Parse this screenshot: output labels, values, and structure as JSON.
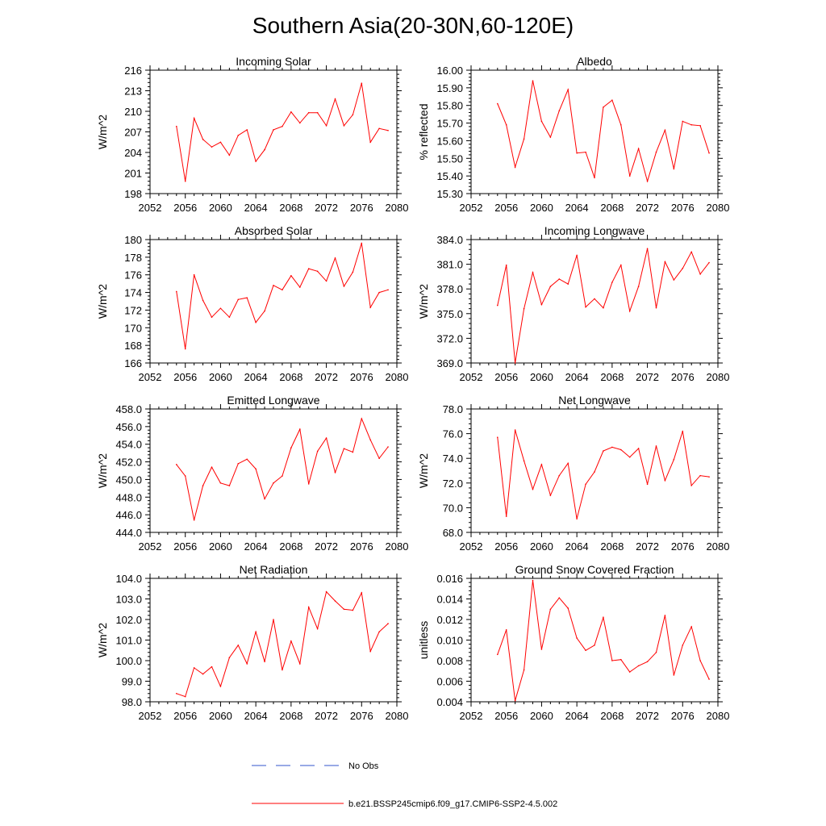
{
  "title": "Southern Asia(20-30N,60-120E)",
  "x_ticks": [
    "2052",
    "2056",
    "2060",
    "2064",
    "2068",
    "2072",
    "2076",
    "2080"
  ],
  "legend": {
    "obs_label": "No Obs",
    "obs_color": "#3355cc",
    "model_label": "b.e21.BSSP245cmip6.f09_g17.CMIP6-SSP2-4.5.002",
    "model_color": "#ff0000"
  },
  "chart_data": [
    {
      "type": "line",
      "title": "Incoming Solar",
      "ylabel": "W/m^2",
      "xlim": [
        2052,
        2080
      ],
      "ylim": [
        198,
        216
      ],
      "yticks": [
        "198",
        "201",
        "204",
        "207",
        "210",
        "213",
        "216"
      ],
      "x": [
        2055,
        2056,
        2057,
        2058,
        2059,
        2060,
        2061,
        2062,
        2063,
        2064,
        2065,
        2066,
        2067,
        2068,
        2069,
        2070,
        2071,
        2072,
        2073,
        2074,
        2075,
        2076,
        2077,
        2078,
        2079
      ],
      "values": [
        207.8,
        199.8,
        209.0,
        205.9,
        204.8,
        205.5,
        203.6,
        206.5,
        207.3,
        202.7,
        204.4,
        207.3,
        207.8,
        209.9,
        208.3,
        209.8,
        209.8,
        207.9,
        211.8,
        207.9,
        209.5,
        214.1,
        205.5,
        207.5,
        207.2
      ]
    },
    {
      "type": "line",
      "title": "Albedo",
      "ylabel": "% reflected",
      "xlim": [
        2052,
        2080
      ],
      "ylim": [
        15.3,
        16.0
      ],
      "yticks": [
        "15.30",
        "15.40",
        "15.50",
        "15.60",
        "15.70",
        "15.80",
        "15.90",
        "16.00"
      ],
      "x": [
        2055,
        2056,
        2057,
        2058,
        2059,
        2060,
        2061,
        2062,
        2063,
        2064,
        2065,
        2066,
        2067,
        2068,
        2069,
        2070,
        2071,
        2072,
        2073,
        2074,
        2075,
        2076,
        2077,
        2078,
        2079
      ],
      "values": [
        15.81,
        15.69,
        15.45,
        15.61,
        15.94,
        15.71,
        15.62,
        15.77,
        15.89,
        15.53,
        15.535,
        15.39,
        15.79,
        15.83,
        15.69,
        15.4,
        15.555,
        15.37,
        15.535,
        15.66,
        15.44,
        15.71,
        15.69,
        15.685,
        15.53
      ]
    },
    {
      "type": "line",
      "title": "Absorbed Solar",
      "ylabel": "W/m^2",
      "xlim": [
        2052,
        2080
      ],
      "ylim": [
        166,
        180
      ],
      "yticks": [
        "166",
        "168",
        "170",
        "172",
        "174",
        "176",
        "178",
        "180"
      ],
      "x": [
        2055,
        2056,
        2057,
        2058,
        2059,
        2060,
        2061,
        2062,
        2063,
        2064,
        2065,
        2066,
        2067,
        2068,
        2069,
        2070,
        2071,
        2072,
        2073,
        2074,
        2075,
        2076,
        2077,
        2078,
        2079
      ],
      "values": [
        174.1,
        167.6,
        176.0,
        173.1,
        171.2,
        172.2,
        171.2,
        173.2,
        173.4,
        170.6,
        171.9,
        174.8,
        174.3,
        175.9,
        174.6,
        176.7,
        176.4,
        175.3,
        177.9,
        174.7,
        176.3,
        179.6,
        172.3,
        174.0,
        174.3
      ]
    },
    {
      "type": "line",
      "title": "Incoming Longwave",
      "ylabel": "W/m^2",
      "xlim": [
        2052,
        2080
      ],
      "ylim": [
        369,
        384
      ],
      "yticks": [
        "369.0",
        "372.0",
        "375.0",
        "378.0",
        "381.0",
        "384.0"
      ],
      "x": [
        2055,
        2056,
        2057,
        2058,
        2059,
        2060,
        2061,
        2062,
        2063,
        2064,
        2065,
        2066,
        2067,
        2068,
        2069,
        2070,
        2071,
        2072,
        2073,
        2074,
        2075,
        2076,
        2077,
        2078,
        2079
      ],
      "values": [
        376.0,
        380.9,
        369.0,
        375.6,
        380.0,
        376.1,
        378.3,
        379.2,
        378.6,
        382.1,
        375.8,
        376.8,
        375.7,
        378.8,
        380.9,
        375.3,
        378.3,
        382.9,
        375.7,
        381.3,
        379.1,
        380.5,
        382.5,
        379.8,
        381.2
      ]
    },
    {
      "type": "line",
      "title": "Emitted Longwave",
      "ylabel": "W/m^2",
      "xlim": [
        2052,
        2080
      ],
      "ylim": [
        444,
        458
      ],
      "yticks": [
        "444.0",
        "446.0",
        "448.0",
        "450.0",
        "452.0",
        "454.0",
        "456.0",
        "458.0"
      ],
      "x": [
        2055,
        2056,
        2057,
        2058,
        2059,
        2060,
        2061,
        2062,
        2063,
        2064,
        2065,
        2066,
        2067,
        2068,
        2069,
        2070,
        2071,
        2072,
        2073,
        2074,
        2075,
        2076,
        2077,
        2078,
        2079
      ],
      "values": [
        451.7,
        450.4,
        445.4,
        449.3,
        451.4,
        449.6,
        449.3,
        451.8,
        452.3,
        451.2,
        447.8,
        449.6,
        450.4,
        453.6,
        455.7,
        449.5,
        453.2,
        454.7,
        450.8,
        453.5,
        453.1,
        456.9,
        454.5,
        452.4,
        453.7
      ]
    },
    {
      "type": "line",
      "title": "Net Longwave",
      "ylabel": "W/m^2",
      "xlim": [
        2052,
        2080
      ],
      "ylim": [
        68,
        78
      ],
      "yticks": [
        "68.0",
        "70.0",
        "72.0",
        "74.0",
        "76.0",
        "78.0"
      ],
      "x": [
        2055,
        2056,
        2057,
        2058,
        2059,
        2060,
        2061,
        2062,
        2063,
        2064,
        2065,
        2066,
        2067,
        2068,
        2069,
        2070,
        2071,
        2072,
        2073,
        2074,
        2075,
        2076,
        2077,
        2078,
        2079
      ],
      "values": [
        75.7,
        69.3,
        76.3,
        73.8,
        71.5,
        73.5,
        71.0,
        72.6,
        73.6,
        69.1,
        71.9,
        72.9,
        74.6,
        74.9,
        74.7,
        74.1,
        74.8,
        71.9,
        75.0,
        72.2,
        73.9,
        76.2,
        71.8,
        72.6,
        72.5
      ]
    },
    {
      "type": "line",
      "title": "Net Radiation",
      "ylabel": "W/m^2",
      "xlim": [
        2052,
        2080
      ],
      "ylim": [
        98,
        104
      ],
      "yticks": [
        "98.0",
        "99.0",
        "100.0",
        "101.0",
        "102.0",
        "103.0",
        "104.0"
      ],
      "x": [
        2055,
        2056,
        2057,
        2058,
        2059,
        2060,
        2061,
        2062,
        2063,
        2064,
        2065,
        2066,
        2067,
        2068,
        2069,
        2070,
        2071,
        2072,
        2073,
        2074,
        2075,
        2076,
        2077,
        2078,
        2079
      ],
      "values": [
        98.4,
        98.25,
        99.65,
        99.35,
        99.7,
        98.75,
        100.15,
        100.75,
        99.85,
        101.4,
        99.95,
        102.0,
        99.55,
        100.95,
        99.85,
        102.6,
        101.55,
        103.35,
        102.9,
        102.5,
        102.45,
        103.3,
        100.45,
        101.4,
        101.8
      ]
    },
    {
      "type": "line",
      "title": "Ground Snow Covered Fraction",
      "ylabel": "unitless",
      "xlim": [
        2052,
        2080
      ],
      "ylim": [
        0.004,
        0.016
      ],
      "yticks": [
        "0.004",
        "0.006",
        "0.008",
        "0.010",
        "0.012",
        "0.014",
        "0.016"
      ],
      "x": [
        2055,
        2056,
        2057,
        2058,
        2059,
        2060,
        2061,
        2062,
        2063,
        2064,
        2065,
        2066,
        2067,
        2068,
        2069,
        2070,
        2071,
        2072,
        2073,
        2074,
        2075,
        2076,
        2077,
        2078,
        2079
      ],
      "values": [
        0.0086,
        0.011,
        0.0041,
        0.0071,
        0.0158,
        0.0091,
        0.013,
        0.0141,
        0.0131,
        0.0102,
        0.009,
        0.0095,
        0.0122,
        0.008,
        0.0081,
        0.0069,
        0.0075,
        0.0079,
        0.0088,
        0.0124,
        0.0066,
        0.0095,
        0.0113,
        0.008,
        0.0062
      ]
    }
  ]
}
